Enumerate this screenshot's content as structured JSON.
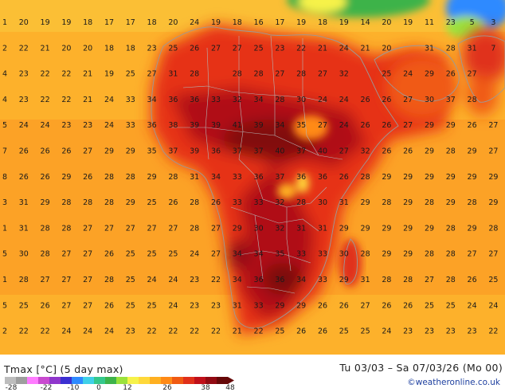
{
  "legend": {
    "title": "Tmax [°C] (5 day max)",
    "ticks": [
      "-28",
      "-22",
      "-10",
      "0",
      "12",
      "26",
      "38",
      "48"
    ],
    "colors": [
      "#bdbdbd",
      "#9e9e9e",
      "#ff7bff",
      "#c94ad0",
      "#8f36cc",
      "#3b2fd1",
      "#2e8aff",
      "#3fd0e8",
      "#35c88c",
      "#3db34a",
      "#9be23c",
      "#f6f24a",
      "#ffd83a",
      "#ffb020",
      "#ff8a16",
      "#f05a12",
      "#e0301a",
      "#c0101a",
      "#920a12",
      "#660808"
    ]
  },
  "time_range": "Tu 03/03 – Sa 07/03/26 (Mo 00)",
  "credit": "©weatheronline.co.uk",
  "grid_rows": [
    [
      "1",
      "20",
      "19",
      "19",
      "18",
      "17",
      "17",
      "18",
      "20",
      "24",
      "19",
      "18",
      "16",
      "17",
      "19",
      "18",
      "19",
      "14",
      "20",
      "19",
      "11",
      "23",
      "5",
      "3"
    ],
    [
      "2",
      "22",
      "21",
      "20",
      "20",
      "18",
      "18",
      "23",
      "25",
      "26",
      "27",
      "27",
      "25",
      "23",
      "22",
      "21",
      "24",
      "21",
      "20",
      "",
      "31",
      "28",
      "31",
      "7"
    ],
    [
      "4",
      "23",
      "22",
      "22",
      "21",
      "19",
      "25",
      "27",
      "31",
      "28",
      "",
      "28",
      "28",
      "27",
      "28",
      "27",
      "32",
      "",
      "25",
      "24",
      "29",
      "26",
      "27",
      ""
    ],
    [
      "4",
      "23",
      "22",
      "22",
      "21",
      "24",
      "33",
      "34",
      "36",
      "36",
      "33",
      "32",
      "34",
      "28",
      "30",
      "24",
      "24",
      "26",
      "26",
      "27",
      "30",
      "37",
      "28",
      ""
    ],
    [
      "5",
      "24",
      "24",
      "23",
      "23",
      "24",
      "33",
      "36",
      "38",
      "39",
      "39",
      "41",
      "39",
      "34",
      "35",
      "27",
      "24",
      "26",
      "26",
      "27",
      "29",
      "29",
      "26",
      "27"
    ],
    [
      "7",
      "26",
      "26",
      "26",
      "27",
      "29",
      "29",
      "35",
      "37",
      "39",
      "36",
      "37",
      "37",
      "40",
      "37",
      "40",
      "27",
      "32",
      "26",
      "26",
      "29",
      "28",
      "29",
      "27"
    ],
    [
      "8",
      "26",
      "26",
      "29",
      "26",
      "28",
      "28",
      "29",
      "28",
      "31",
      "34",
      "33",
      "36",
      "37",
      "36",
      "36",
      "26",
      "28",
      "29",
      "29",
      "29",
      "29",
      "29",
      "29"
    ],
    [
      "3",
      "31",
      "29",
      "28",
      "28",
      "28",
      "29",
      "25",
      "26",
      "28",
      "26",
      "33",
      "33",
      "32",
      "28",
      "30",
      "31",
      "29",
      "28",
      "29",
      "28",
      "29",
      "28",
      "29"
    ],
    [
      "1",
      "31",
      "28",
      "28",
      "27",
      "27",
      "27",
      "27",
      "27",
      "28",
      "27",
      "29",
      "30",
      "32",
      "31",
      "31",
      "29",
      "29",
      "29",
      "29",
      "29",
      "28",
      "29",
      "28"
    ],
    [
      "5",
      "30",
      "28",
      "27",
      "27",
      "26",
      "25",
      "25",
      "25",
      "24",
      "27",
      "34",
      "34",
      "35",
      "33",
      "33",
      "30",
      "28",
      "29",
      "29",
      "28",
      "28",
      "27",
      "27"
    ],
    [
      "1",
      "28",
      "27",
      "27",
      "27",
      "28",
      "25",
      "24",
      "24",
      "23",
      "22",
      "34",
      "36",
      "36",
      "34",
      "33",
      "29",
      "31",
      "28",
      "28",
      "27",
      "28",
      "26",
      "25"
    ],
    [
      "5",
      "25",
      "26",
      "27",
      "27",
      "26",
      "25",
      "25",
      "24",
      "23",
      "23",
      "31",
      "33",
      "29",
      "29",
      "26",
      "26",
      "27",
      "26",
      "26",
      "25",
      "25",
      "24",
      "24"
    ],
    [
      "2",
      "22",
      "22",
      "24",
      "24",
      "24",
      "23",
      "22",
      "22",
      "22",
      "22",
      "21",
      "22",
      "25",
      "26",
      "26",
      "25",
      "25",
      "24",
      "23",
      "23",
      "23",
      "23",
      "22"
    ]
  ]
}
